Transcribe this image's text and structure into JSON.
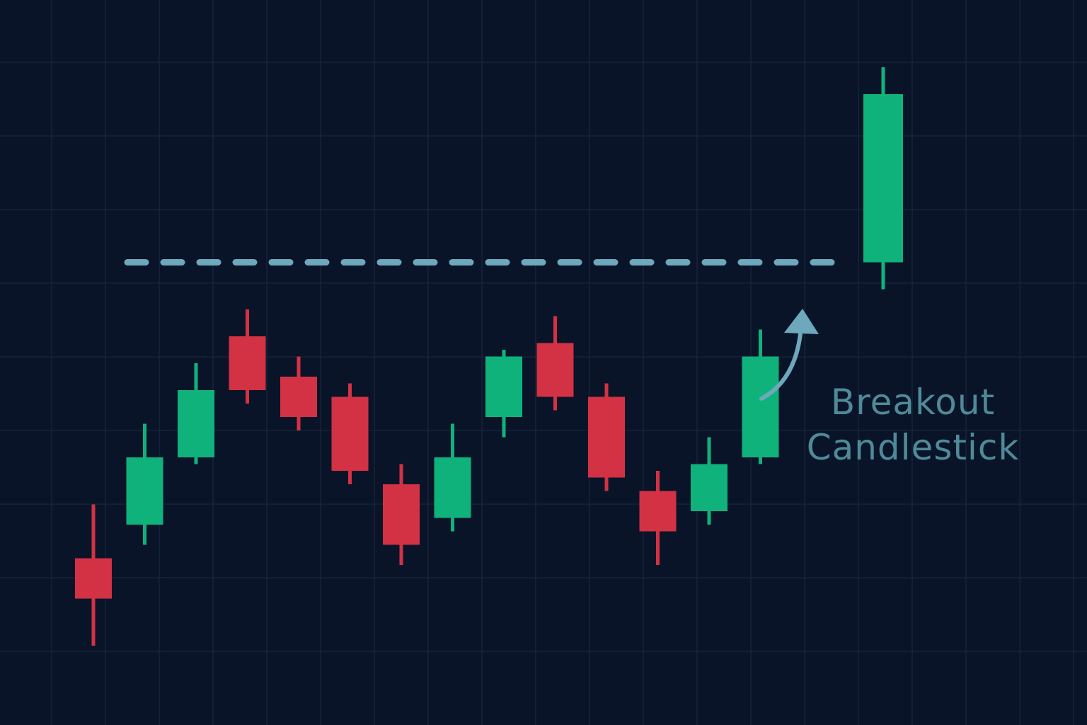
{
  "chart_data": {
    "type": "candlestick",
    "title": "",
    "xlabel": "",
    "ylabel": "",
    "grid": true,
    "ylim": [
      0,
      100
    ],
    "resistance_level": 61,
    "candles": [
      {
        "open": 17,
        "close": 11,
        "high": 25,
        "low": 4
      },
      {
        "open": 22,
        "close": 32,
        "high": 37,
        "low": 19
      },
      {
        "open": 32,
        "close": 42,
        "high": 46,
        "low": 31
      },
      {
        "open": 50,
        "close": 42,
        "high": 54,
        "low": 40
      },
      {
        "open": 44,
        "close": 38,
        "high": 47,
        "low": 36
      },
      {
        "open": 41,
        "close": 30,
        "high": 43,
        "low": 28
      },
      {
        "open": 28,
        "close": 19,
        "high": 31,
        "low": 16
      },
      {
        "open": 23,
        "close": 32,
        "high": 37,
        "low": 21
      },
      {
        "open": 38,
        "close": 47,
        "high": 48,
        "low": 35
      },
      {
        "open": 49,
        "close": 41,
        "high": 53,
        "low": 39
      },
      {
        "open": 41,
        "close": 29,
        "high": 43,
        "low": 27
      },
      {
        "open": 27,
        "close": 21,
        "high": 30,
        "low": 16
      },
      {
        "open": 24,
        "close": 31,
        "high": 35,
        "low": 22
      },
      {
        "open": 32,
        "close": 47,
        "high": 51,
        "low": 31
      },
      {
        "open": 61,
        "close": 86,
        "high": 90,
        "low": 57
      }
    ],
    "annotation": {
      "line1": "Breakout",
      "line2": "Candlestick"
    }
  },
  "colors": {
    "background": "#0a1428",
    "grid": "#1a2a40",
    "up": "#10b27c",
    "down": "#d23243",
    "resistance": "#6ea8bc",
    "annotation": "#4f8a98"
  }
}
